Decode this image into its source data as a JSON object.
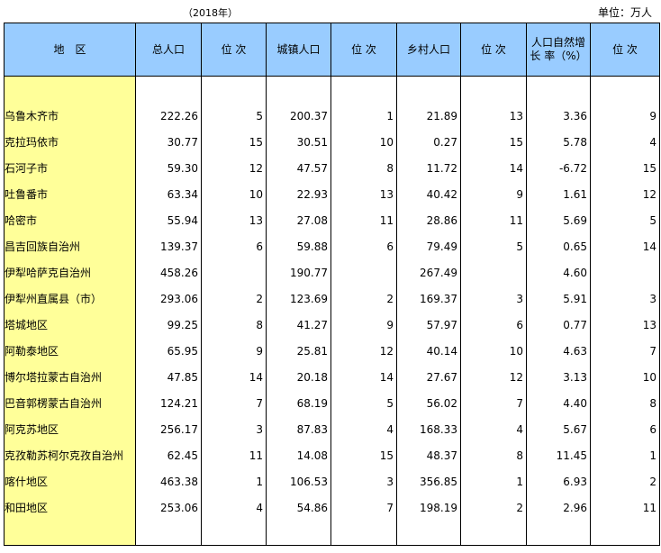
{
  "header": {
    "year": "（2018年）",
    "unit": "单位：万人"
  },
  "columns": [
    "地　区",
    "总人口",
    "位 次",
    "城镇人口",
    "位 次",
    "乡村人口",
    "位 次",
    "人口自然增 长 率（%）",
    "位 次"
  ],
  "rows": [
    [
      "乌鲁木齐市",
      "222.26",
      "5",
      "200.37",
      "1",
      "21.89",
      "13",
      "3.36",
      "9"
    ],
    [
      "克拉玛依市",
      "30.77",
      "15",
      "30.51",
      "10",
      "0.27",
      "15",
      "5.78",
      "4"
    ],
    [
      "石河子市",
      "59.30",
      "12",
      "47.57",
      "8",
      "11.72",
      "14",
      "-6.72",
      "15"
    ],
    [
      "吐鲁番市",
      "63.34",
      "10",
      "22.93",
      "13",
      "40.42",
      "9",
      "1.61",
      "12"
    ],
    [
      "哈密市",
      "55.94",
      "13",
      "27.08",
      "11",
      "28.86",
      "11",
      "5.69",
      "5"
    ],
    [
      "昌吉回族自治州",
      "139.37",
      "6",
      "59.88",
      "6",
      "79.49",
      "5",
      "0.65",
      "14"
    ],
    [
      "伊犁哈萨克自治州",
      "458.26",
      "",
      "190.77",
      "",
      "267.49",
      "",
      "4.60",
      ""
    ],
    [
      "伊犁州直属县（市）",
      "293.06",
      "2",
      "123.69",
      "2",
      "169.37",
      "3",
      "5.91",
      "3"
    ],
    [
      "塔城地区",
      "99.25",
      "8",
      "41.27",
      "9",
      "57.97",
      "6",
      "0.77",
      "13"
    ],
    [
      "阿勒泰地区",
      "65.95",
      "9",
      "25.81",
      "12",
      "40.14",
      "10",
      "4.63",
      "7"
    ],
    [
      "博尔塔拉蒙古自治州",
      "47.85",
      "14",
      "20.18",
      "14",
      "27.67",
      "12",
      "3.13",
      "10"
    ],
    [
      "巴音郭楞蒙古自治州",
      "124.21",
      "7",
      "68.19",
      "5",
      "56.02",
      "7",
      "4.40",
      "8"
    ],
    [
      "阿克苏地区",
      "256.17",
      "3",
      "87.83",
      "4",
      "168.33",
      "4",
      "5.67",
      "6"
    ],
    [
      "克孜勒苏柯尔克孜自治州",
      "62.45",
      "11",
      "14.08",
      "15",
      "48.37",
      "8",
      "11.45",
      "1"
    ],
    [
      "喀什地区",
      "463.38",
      "1",
      "106.53",
      "3",
      "356.85",
      "1",
      "6.93",
      "2"
    ],
    [
      "和田地区",
      "253.06",
      "4",
      "54.86",
      "7",
      "198.19",
      "2",
      "2.96",
      "11"
    ]
  ]
}
